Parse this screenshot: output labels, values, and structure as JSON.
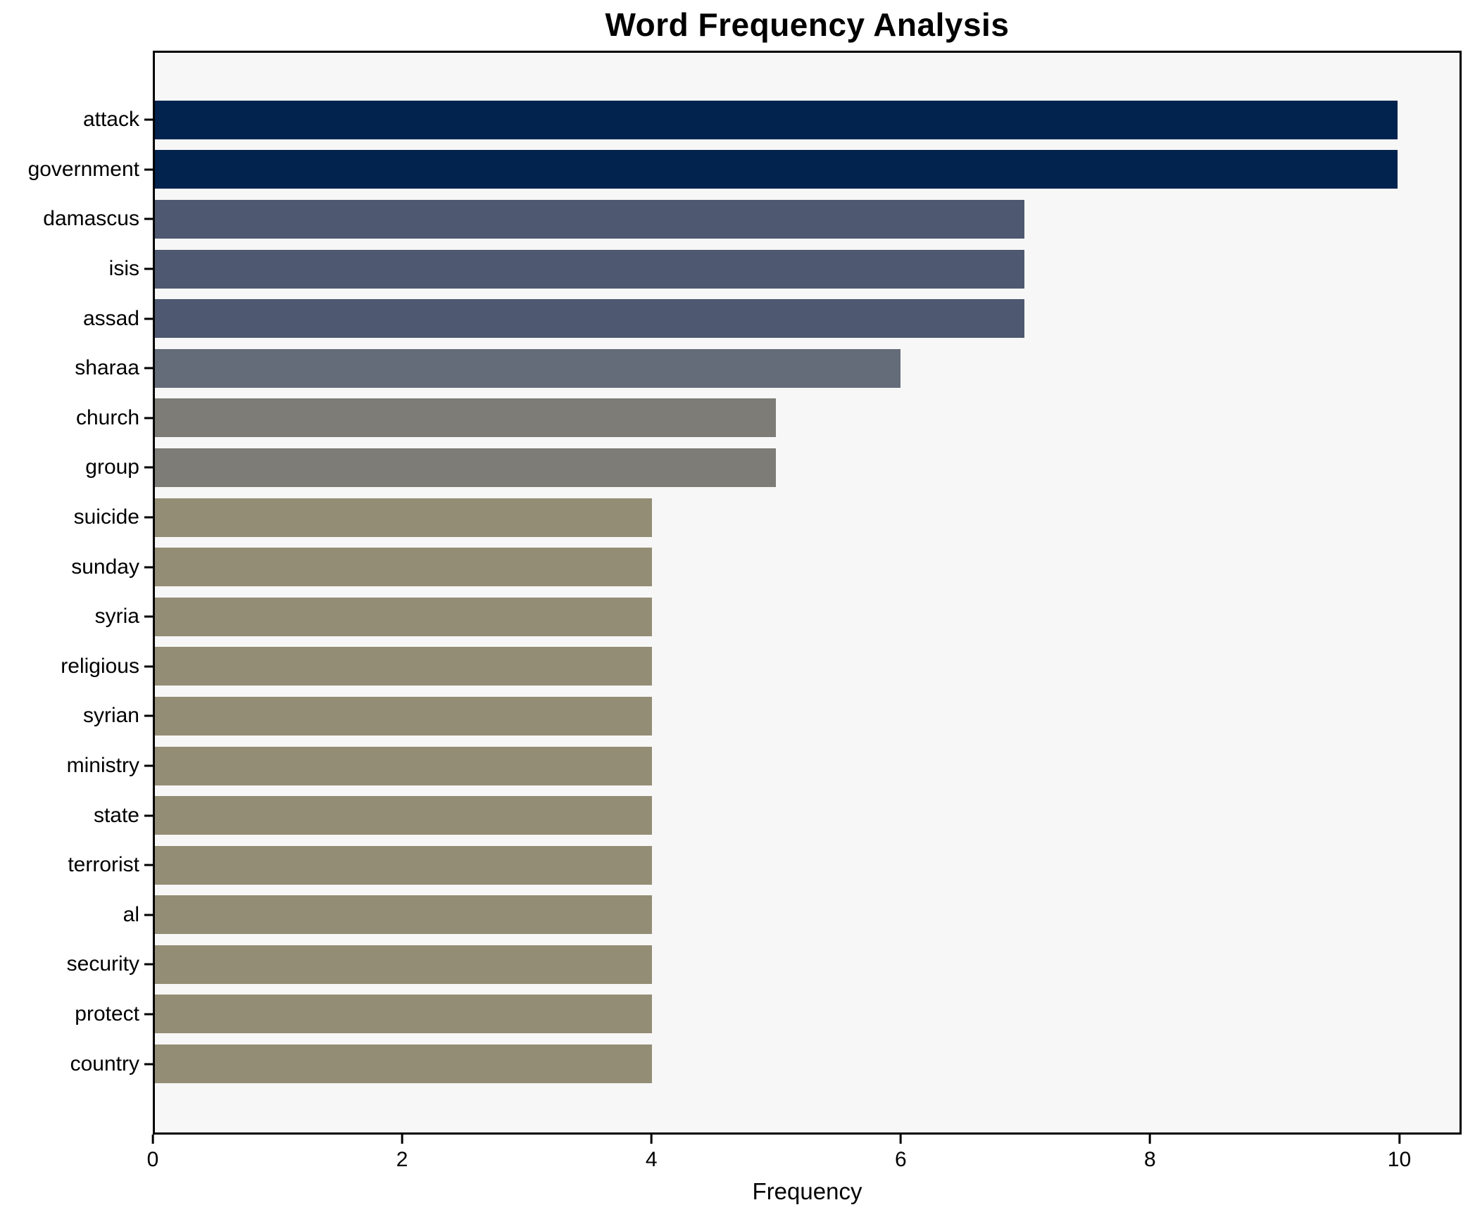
{
  "page": {
    "background": "#ffffff"
  },
  "chart_data": {
    "type": "bar",
    "orientation": "horizontal",
    "title": "Word Frequency Analysis",
    "xlabel": "Frequency",
    "ylabel": "",
    "categories": [
      "attack",
      "government",
      "damascus",
      "isis",
      "assad",
      "sharaa",
      "church",
      "group",
      "suicide",
      "sunday",
      "syria",
      "religious",
      "syrian",
      "ministry",
      "state",
      "terrorist",
      "al",
      "security",
      "protect",
      "country"
    ],
    "values": [
      10,
      10,
      7,
      7,
      7,
      6,
      5,
      5,
      4,
      4,
      4,
      4,
      4,
      4,
      4,
      4,
      4,
      4,
      4,
      4
    ],
    "bar_colors": [
      "#02234e",
      "#02234e",
      "#4e5870",
      "#4e5870",
      "#4e5870",
      "#646b79",
      "#7d7c77",
      "#7d7c77",
      "#948d75",
      "#948d75",
      "#948d75",
      "#948d75",
      "#948d75",
      "#948d75",
      "#948d75",
      "#948d75",
      "#948d75",
      "#948d75",
      "#948d75",
      "#948d75"
    ],
    "xlim": [
      0,
      10.5
    ],
    "xticks": [
      0,
      2,
      4,
      6,
      8,
      10
    ],
    "grid": false,
    "legend": null,
    "plot_background": "#f7f7f7",
    "axis_color": "#000000"
  }
}
